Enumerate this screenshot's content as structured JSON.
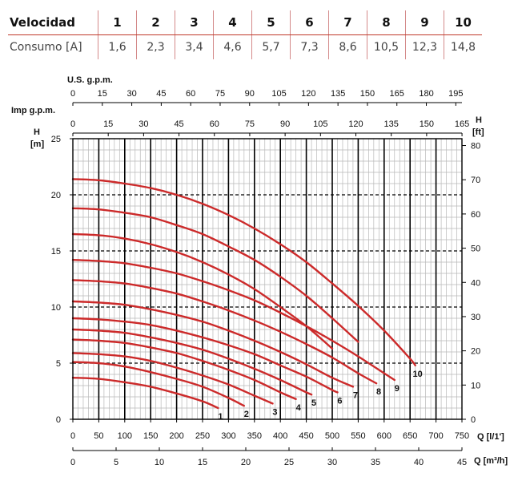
{
  "table": {
    "row_labels": [
      "Velocidad",
      "Consumo [A]"
    ],
    "speeds": [
      "1",
      "2",
      "3",
      "4",
      "5",
      "6",
      "7",
      "8",
      "9",
      "10"
    ],
    "consumption": [
      "1,6",
      "2,3",
      "3,4",
      "4,6",
      "5,7",
      "7,3",
      "8,6",
      "10,5",
      "12,3",
      "14,8"
    ]
  },
  "colors": {
    "curve": "#cc2a2a",
    "grid_minor": "#b8b8b8",
    "grid_major": "#000000",
    "table_rule": "#c0392b"
  },
  "chart_data": {
    "type": "line",
    "axes": {
      "us_gpm": {
        "label": "U.S. g.p.m.",
        "ticks": [
          0,
          15,
          30,
          45,
          60,
          75,
          90,
          105,
          120,
          135,
          150,
          165,
          180,
          195
        ],
        "range": [
          0,
          195
        ]
      },
      "imp_gpm": {
        "label": "Imp g.p.m.",
        "ticks": [
          0,
          15,
          30,
          45,
          60,
          75,
          90,
          105,
          120,
          135,
          150,
          165
        ],
        "range": [
          0,
          165
        ]
      },
      "h_left": {
        "label_top": "H",
        "label_unit": "[m]",
        "ticks": [
          0,
          5,
          10,
          15,
          20,
          25
        ],
        "range": [
          0,
          25
        ]
      },
      "h_right": {
        "label_top": "H",
        "label_unit": "[ft]",
        "ticks": [
          0,
          10,
          20,
          30,
          40,
          50,
          60,
          70,
          80
        ],
        "range": [
          0,
          82
        ]
      },
      "q_lmin": {
        "label": "Q [l/1']",
        "ticks": [
          0,
          50,
          100,
          150,
          200,
          250,
          300,
          350,
          400,
          450,
          500,
          550,
          600,
          650,
          700,
          750
        ],
        "range": [
          0,
          750
        ]
      },
      "q_m3h": {
        "label": "Q [m³/h]",
        "ticks": [
          0,
          5,
          10,
          15,
          20,
          25,
          30,
          35,
          40,
          45
        ],
        "range": [
          0,
          45
        ]
      }
    },
    "grid": true,
    "series": [
      {
        "name": "1",
        "x": [
          0,
          50,
          100,
          150,
          200,
          250,
          280
        ],
        "y": [
          3.7,
          3.6,
          3.3,
          2.9,
          2.3,
          1.6,
          1.0
        ]
      },
      {
        "name": "2",
        "x": [
          0,
          50,
          100,
          150,
          200,
          250,
          300,
          330
        ],
        "y": [
          5.1,
          5.0,
          4.7,
          4.2,
          3.6,
          2.9,
          1.9,
          1.2
        ]
      },
      {
        "name": "3",
        "x": [
          0,
          50,
          100,
          150,
          200,
          250,
          300,
          350,
          385
        ],
        "y": [
          5.9,
          5.8,
          5.6,
          5.2,
          4.6,
          3.9,
          3.1,
          2.1,
          1.4
        ]
      },
      {
        "name": "4",
        "x": [
          0,
          50,
          100,
          150,
          200,
          250,
          300,
          350,
          400,
          430
        ],
        "y": [
          7.1,
          7.0,
          6.8,
          6.4,
          5.9,
          5.2,
          4.4,
          3.5,
          2.4,
          1.8
        ]
      },
      {
        "name": "5",
        "x": [
          0,
          50,
          100,
          150,
          200,
          250,
          300,
          350,
          400,
          450,
          460
        ],
        "y": [
          8.0,
          7.9,
          7.7,
          7.3,
          6.8,
          6.2,
          5.4,
          4.5,
          3.5,
          2.4,
          2.2
        ]
      },
      {
        "name": "6",
        "x": [
          0,
          50,
          100,
          150,
          200,
          250,
          300,
          350,
          400,
          450,
          500,
          510
        ],
        "y": [
          9.0,
          8.9,
          8.7,
          8.4,
          7.9,
          7.3,
          6.6,
          5.8,
          4.8,
          3.8,
          2.6,
          2.4
        ]
      },
      {
        "name": "7",
        "x": [
          0,
          50,
          100,
          150,
          200,
          250,
          300,
          350,
          400,
          450,
          500,
          540
        ],
        "y": [
          10.5,
          10.4,
          10.2,
          9.8,
          9.3,
          8.7,
          7.9,
          7.0,
          6.0,
          4.9,
          3.7,
          2.9
        ]
      },
      {
        "name": "8",
        "x": [
          0,
          50,
          100,
          150,
          200,
          250,
          300,
          350,
          400,
          450,
          500,
          550,
          585
        ],
        "y": [
          12.4,
          12.3,
          12.1,
          11.7,
          11.2,
          10.5,
          9.7,
          8.8,
          7.8,
          6.7,
          5.5,
          4.1,
          3.2
        ]
      },
      {
        "name": "9",
        "x": [
          0,
          50,
          100,
          150,
          200,
          250,
          300,
          350,
          400,
          450,
          500,
          550,
          600,
          620
        ],
        "y": [
          14.2,
          14.1,
          13.9,
          13.5,
          13.0,
          12.3,
          11.5,
          10.6,
          9.5,
          8.3,
          7.0,
          5.6,
          4.1,
          3.5
        ]
      },
      {
        "name": "10",
        "x": [
          0,
          50,
          100,
          150,
          200,
          250,
          300,
          350,
          400,
          450,
          500,
          550,
          600,
          650,
          660
        ],
        "y": [
          21.4,
          21.3,
          21.0,
          20.6,
          20.0,
          19.2,
          18.2,
          17.0,
          15.6,
          14.0,
          12.1,
          10.1,
          7.9,
          5.4,
          4.8
        ]
      },
      {
        "name": "",
        "x": [
          0,
          50,
          100,
          150,
          200,
          250,
          300,
          350,
          400,
          450,
          500,
          550
        ],
        "y": [
          18.8,
          18.7,
          18.4,
          18.0,
          17.3,
          16.5,
          15.4,
          14.2,
          12.7,
          11.0,
          9.0,
          6.9
        ]
      },
      {
        "name": "",
        "x": [
          0,
          50,
          100,
          150,
          200,
          250,
          300,
          350,
          400,
          450,
          500
        ],
        "y": [
          16.5,
          16.4,
          16.1,
          15.6,
          14.9,
          14.0,
          12.9,
          11.6,
          10.0,
          8.3,
          6.3
        ]
      }
    ],
    "curve_labels": [
      "1",
      "2",
      "3",
      "4",
      "5",
      "6",
      "7",
      "8",
      "9",
      "10"
    ]
  }
}
